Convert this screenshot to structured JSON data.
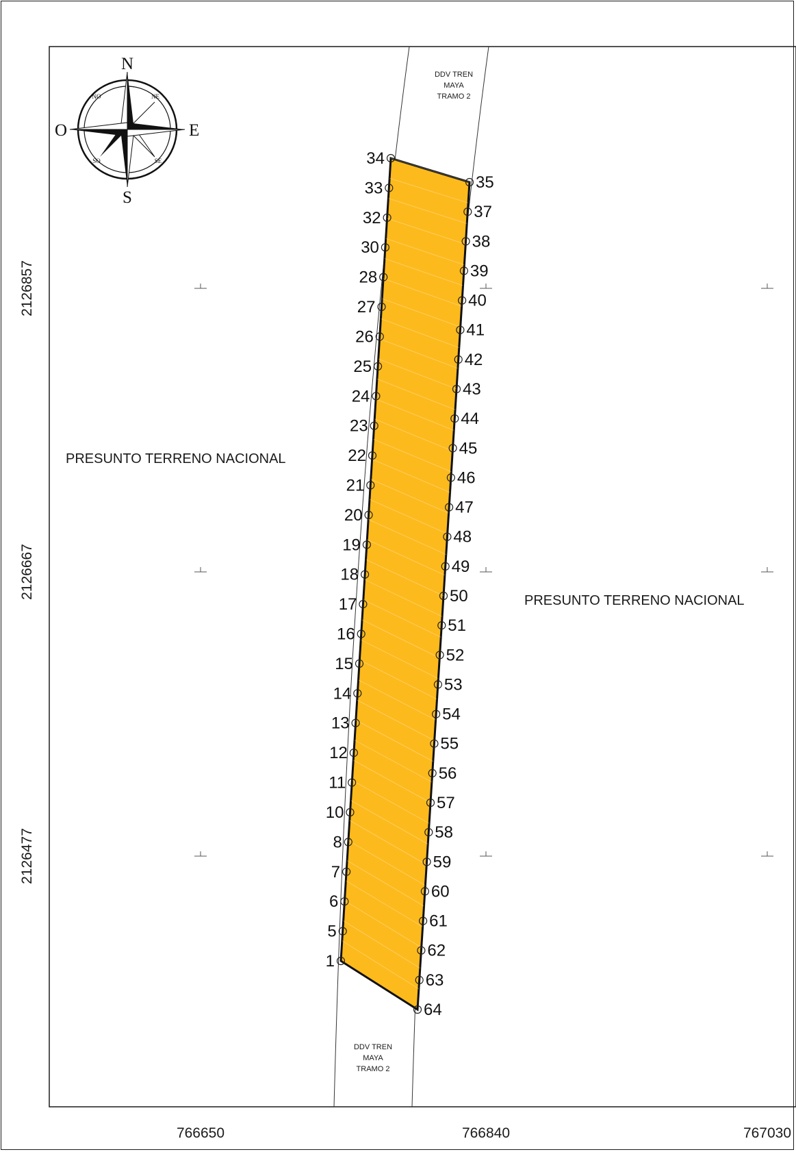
{
  "map": {
    "compass": {
      "north": "N",
      "south": "S",
      "east": "E",
      "west": "O",
      "ne": "NE",
      "nw": "NO",
      "se": "SE",
      "sw": "SO"
    },
    "ddv_label_top": [
      "DDV TREN",
      "MAYA",
      "TRAMO 2"
    ],
    "ddv_label_bottom": [
      "DDV TREN",
      "MAYA",
      "TRAMO 2"
    ],
    "zone_left": "PRESUNTO TERRENO NACIONAL",
    "zone_right": "PRESUNTO TERRENO NACIONAL",
    "x_ticks": [
      "766650",
      "766840",
      "767030"
    ],
    "y_ticks": [
      "2126857",
      "2126667",
      "2126477"
    ],
    "parcel_fill": "#FDBA1D",
    "left_vertices": [
      "1",
      "5",
      "6",
      "7",
      "8",
      "10",
      "11",
      "12",
      "13",
      "14",
      "15",
      "16",
      "17",
      "18",
      "19",
      "20",
      "21",
      "22",
      "23",
      "24",
      "25",
      "26",
      "27",
      "28",
      "30",
      "32",
      "33",
      "34"
    ],
    "right_vertices": [
      "35",
      "37",
      "38",
      "39",
      "40",
      "41",
      "42",
      "43",
      "44",
      "45",
      "46",
      "47",
      "48",
      "49",
      "50",
      "51",
      "52",
      "53",
      "54",
      "55",
      "56",
      "57",
      "58",
      "59",
      "60",
      "61",
      "62",
      "63",
      "64"
    ]
  }
}
